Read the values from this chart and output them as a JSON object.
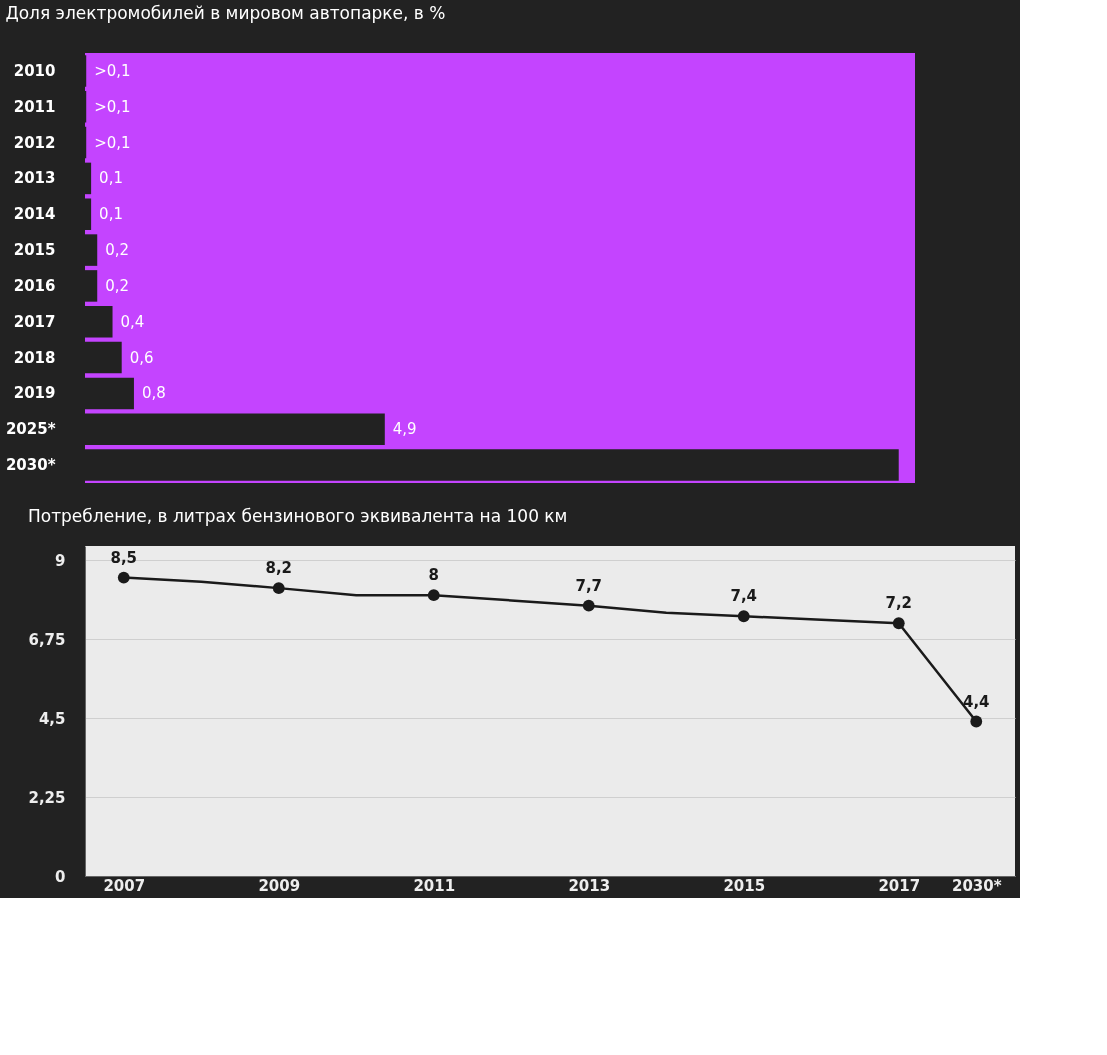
{
  "chart_data": [
    {
      "type": "bar",
      "orientation": "horizontal",
      "title": "Доля электромобилей в мировом автопарке, в %",
      "categories": [
        "2010",
        "2011",
        "2012",
        "2013",
        "2014",
        "2015",
        "2016",
        "2017",
        "2018",
        "2019",
        "2025*",
        "2030*"
      ],
      "values": [
        0.02,
        0.02,
        0.02,
        0.1,
        0.1,
        0.2,
        0.2,
        0.45,
        0.6,
        0.8,
        4.9,
        13.3
      ],
      "value_labels": [
        ">0,1",
        ">0,1",
        ">0,1",
        "0,1",
        "0,1",
        "0,2",
        "0,2",
        "0,4",
        "0,6",
        "0,8",
        "4,9",
        null
      ],
      "color": "#222222",
      "grid": false
    },
    {
      "type": "line",
      "title": "Потребление, в литрах бензинового эквивалента на 100 км",
      "categories": [
        "2007",
        null,
        "2009",
        null,
        "2011",
        null,
        "2013",
        null,
        "2015",
        null,
        "2017",
        "2030*"
      ],
      "values": [
        8.5,
        8.38,
        8.2,
        8.0,
        8.0,
        7.85,
        7.7,
        7.5,
        7.4,
        7.3,
        7.2,
        4.4
      ],
      "value_labels": [
        "8,5",
        null,
        "8,2",
        null,
        "8",
        null,
        "7,7",
        null,
        "7,4",
        null,
        "7,2",
        "4,4"
      ],
      "color": "#1a1a1a",
      "marker": "circle",
      "line_style": "solid",
      "grid": "y",
      "ylim": [
        0,
        9.4
      ],
      "yticks": [
        {
          "value": 0,
          "label": "0"
        },
        {
          "value": 2.25,
          "label": "2,25"
        },
        {
          "value": 4.5,
          "label": "4,5"
        },
        {
          "value": 6.75,
          "label": "6,75"
        },
        9
      ]
    }
  ]
}
